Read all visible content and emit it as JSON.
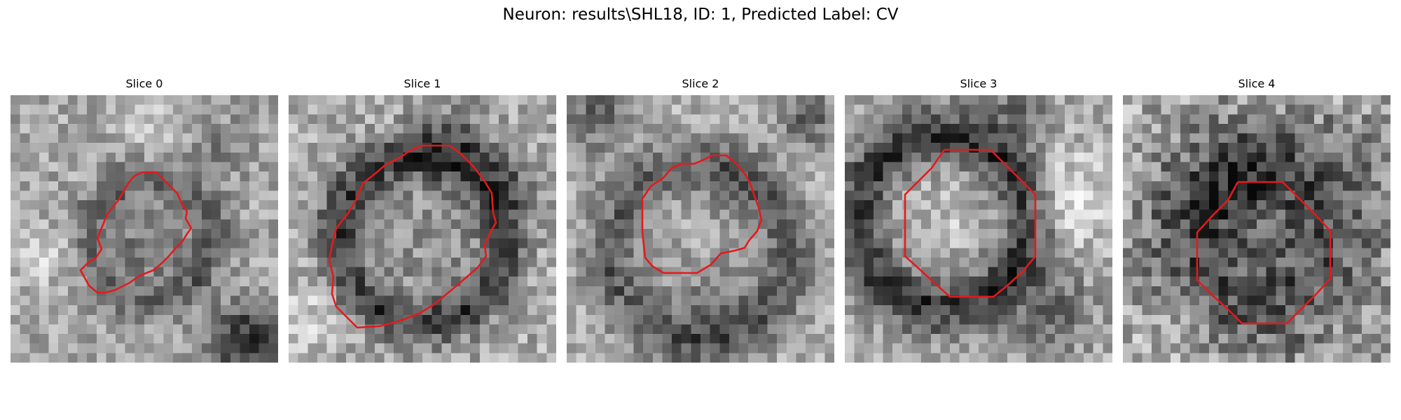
{
  "figure": {
    "title": "Neuron: results\\SHL18, ID: 1, Predicted Label: CV"
  },
  "colors": {
    "contour": "#e31a1c",
    "background": "#ffffff",
    "text": "#000000"
  },
  "panels": [
    {
      "title": "Slice 0"
    },
    {
      "title": "Slice 1"
    },
    {
      "title": "Slice 2"
    },
    {
      "title": "Slice 3"
    },
    {
      "title": "Slice 4"
    }
  ]
}
